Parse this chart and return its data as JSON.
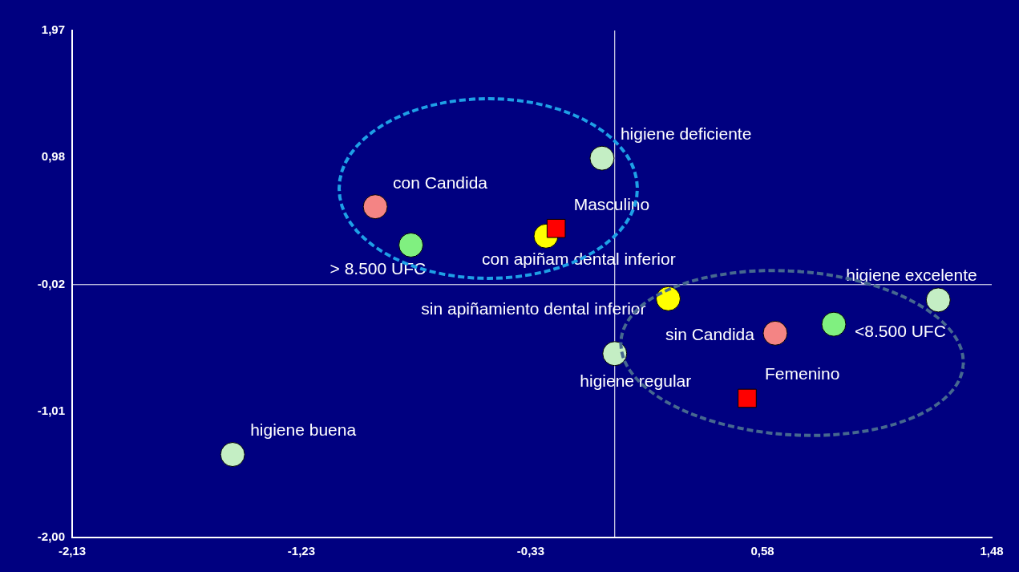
{
  "chart_data": {
    "type": "scatter",
    "marker": "circle",
    "grid": false,
    "legend": false,
    "xlim": [
      -2.13,
      1.48
    ],
    "ylim": [
      -2.0,
      1.97
    ],
    "xticks": [
      {
        "value": -2.13,
        "label": "-2,13"
      },
      {
        "value": -1.23,
        "label": "-1,23"
      },
      {
        "value": -0.33,
        "label": "-0,33"
      },
      {
        "value": 0.58,
        "label": "0,58"
      },
      {
        "value": 1.48,
        "label": "1,48"
      }
    ],
    "yticks": [
      {
        "value": -2.0,
        "label": "-2,00"
      },
      {
        "value": -1.01,
        "label": "-1,01"
      },
      {
        "value": -0.02,
        "label": "-0,02"
      },
      {
        "value": 0.98,
        "label": "0,98"
      },
      {
        "value": 1.97,
        "label": "1,97"
      }
    ],
    "ref_lines": [
      {
        "axis": "x",
        "value": 0,
        "color": "#ffffff"
      },
      {
        "axis": "y",
        "value": -0.02,
        "color": "#ffffff"
      }
    ],
    "series": [
      {
        "name": "higiene deficiente",
        "color": "#c4eec4",
        "x": [
          -0.05
        ],
        "values": [
          0.97
        ]
      },
      {
        "name": "con Candida",
        "color": "#f48484",
        "x": [
          -0.94
        ],
        "values": [
          0.59
        ]
      },
      {
        "name": "Masculino",
        "color": "#ff0000",
        "marker": "square",
        "x": [
          -0.23
        ],
        "values": [
          0.42
        ]
      },
      {
        "name": "con apiñam dental inferior",
        "color": "#ffff00",
        "x": [
          -0.27
        ],
        "values": [
          0.36
        ]
      },
      {
        "name": "> 8.500 UFC",
        "color": "#80f080",
        "x": [
          -0.8
        ],
        "values": [
          0.29
        ]
      },
      {
        "name": "sin apiñamiento dental inferior",
        "color": "#ffff00",
        "x": [
          0.21
        ],
        "values": [
          -0.13
        ]
      },
      {
        "name": "higiene excelente",
        "color": "#c4eec4",
        "x": [
          1.27
        ],
        "values": [
          -0.14
        ]
      },
      {
        "name": "<8.500 UFC",
        "color": "#80f080",
        "x": [
          0.86
        ],
        "values": [
          -0.33
        ]
      },
      {
        "name": "sin Candida",
        "color": "#f48484",
        "x": [
          0.63
        ],
        "values": [
          -0.4
        ]
      },
      {
        "name": "higiene regular",
        "color": "#c4eec4",
        "x": [
          0.0
        ],
        "values": [
          -0.56
        ]
      },
      {
        "name": "Femenino",
        "color": "#ff0000",
        "marker": "square",
        "x": [
          0.52
        ],
        "values": [
          -0.91
        ]
      },
      {
        "name": "higiene buena",
        "color": "#c4eec4",
        "x": [
          -1.5
        ],
        "values": [
          -1.35
        ]
      }
    ]
  }
}
